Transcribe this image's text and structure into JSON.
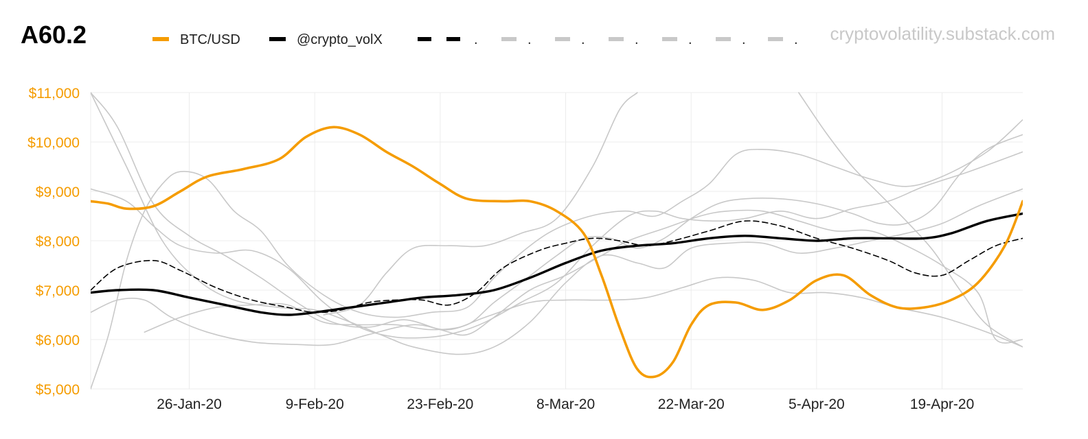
{
  "header": {
    "title": "A60.2",
    "watermark": "cryptovolatility.substack.com"
  },
  "colors": {
    "btc": "#f59c00",
    "vol": "#000000",
    "grey": "#c8c8c8",
    "grid": "#ececec"
  },
  "chart_data": {
    "type": "line",
    "title": "A60.2",
    "xlabel": "",
    "ylabel": "",
    "ylim": [
      5000,
      11000
    ],
    "xlim": [
      0,
      104
    ],
    "legend": "top",
    "x_ticks": [
      {
        "x": 11,
        "label": "26-Jan-20"
      },
      {
        "x": 25,
        "label": "9-Feb-20"
      },
      {
        "x": 39,
        "label": "23-Feb-20"
      },
      {
        "x": 53,
        "label": "8-Mar-20"
      },
      {
        "x": 67,
        "label": "22-Mar-20"
      },
      {
        "x": 81,
        "label": "5-Apr-20"
      },
      {
        "x": 95,
        "label": "19-Apr-20"
      }
    ],
    "y_ticks": [
      {
        "v": 11000,
        "label": "$11,000"
      },
      {
        "v": 10000,
        "label": "$10,000"
      },
      {
        "v": 9000,
        "label": "$9,000"
      },
      {
        "v": 8000,
        "label": "$8,000"
      },
      {
        "v": 7000,
        "label": "$7,000"
      },
      {
        "v": 6000,
        "label": "$6,000"
      },
      {
        "v": 5000,
        "label": "$5,000"
      }
    ],
    "legend_entries": [
      {
        "name": "BTC/USD",
        "style": "solid-orange"
      },
      {
        "name": "@crypto_volX",
        "style": "solid-black"
      },
      {
        "name": ".",
        "style": "dashed-black"
      },
      {
        "name": ".",
        "style": "dashed-grey"
      },
      {
        "name": ".",
        "style": "dashed-grey"
      },
      {
        "name": ".",
        "style": "dashed-grey"
      },
      {
        "name": ".",
        "style": "dashed-grey"
      },
      {
        "name": ".",
        "style": "dashed-grey"
      }
    ],
    "series": [
      {
        "name": "grey-1",
        "style": "grey",
        "points": [
          [
            0,
            11000
          ],
          [
            4,
            9500
          ],
          [
            8,
            8000
          ],
          [
            12,
            7200
          ],
          [
            16,
            6800
          ],
          [
            21,
            6650
          ],
          [
            25,
            6600
          ],
          [
            29,
            6350
          ],
          [
            33,
            6050
          ],
          [
            36,
            5850
          ],
          [
            41,
            5700
          ],
          [
            45,
            5850
          ],
          [
            49,
            6350
          ],
          [
            53,
            7150
          ],
          [
            57,
            7700
          ],
          [
            61,
            7550
          ],
          [
            64,
            7450
          ],
          [
            67,
            7850
          ],
          [
            71,
            7950
          ],
          [
            75,
            7950
          ],
          [
            79,
            7750
          ],
          [
            83,
            7850
          ],
          [
            87,
            8000
          ],
          [
            91,
            8150
          ],
          [
            95,
            8350
          ],
          [
            99,
            8700
          ],
          [
            104,
            9050
          ]
        ]
      },
      {
        "name": "grey-2",
        "style": "grey",
        "points": [
          [
            0,
            9050
          ],
          [
            4,
            8800
          ],
          [
            7,
            8300
          ],
          [
            10,
            7900
          ],
          [
            14,
            7750
          ],
          [
            18,
            7800
          ],
          [
            22,
            7450
          ],
          [
            26,
            6750
          ],
          [
            30,
            6250
          ],
          [
            34,
            6050
          ],
          [
            38,
            6050
          ],
          [
            41,
            6150
          ],
          [
            44,
            6350
          ],
          [
            48,
            6750
          ],
          [
            52,
            7150
          ],
          [
            56,
            7900
          ],
          [
            60,
            8500
          ],
          [
            63,
            8600
          ],
          [
            66,
            8450
          ],
          [
            70,
            8400
          ],
          [
            73,
            8450
          ],
          [
            77,
            8600
          ],
          [
            81,
            8450
          ],
          [
            85,
            8650
          ],
          [
            89,
            8800
          ],
          [
            93,
            9100
          ],
          [
            98,
            9400
          ],
          [
            104,
            9800
          ]
        ]
      },
      {
        "name": "grey-3",
        "style": "grey",
        "points": [
          [
            0,
            11000
          ],
          [
            3,
            10300
          ],
          [
            7,
            8750
          ],
          [
            11,
            8100
          ],
          [
            15,
            7700
          ],
          [
            19,
            7250
          ],
          [
            23,
            6750
          ],
          [
            27,
            6350
          ],
          [
            31,
            6250
          ],
          [
            35,
            6400
          ],
          [
            39,
            6200
          ],
          [
            42,
            6100
          ],
          [
            45,
            6450
          ],
          [
            49,
            7000
          ],
          [
            53,
            7300
          ],
          [
            57,
            7700
          ],
          [
            60,
            8000
          ],
          [
            64,
            8250
          ],
          [
            68,
            8500
          ],
          [
            71,
            8600
          ],
          [
            75,
            8600
          ],
          [
            79,
            8400
          ],
          [
            83,
            8200
          ],
          [
            87,
            8200
          ],
          [
            91,
            7900
          ],
          [
            95,
            7500
          ],
          [
            99,
            6950
          ],
          [
            101,
            6000
          ],
          [
            104,
            6000
          ]
        ]
      },
      {
        "name": "grey-4",
        "style": "grey",
        "points": [
          [
            0,
            6550
          ],
          [
            3,
            6800
          ],
          [
            6,
            6800
          ],
          [
            9,
            6450
          ],
          [
            13,
            6150
          ],
          [
            18,
            5950
          ],
          [
            23,
            5900
          ],
          [
            27,
            5900
          ],
          [
            31,
            6100
          ],
          [
            36,
            6300
          ],
          [
            40,
            6200
          ],
          [
            44,
            6450
          ],
          [
            49,
            6750
          ],
          [
            53,
            6800
          ],
          [
            58,
            6800
          ],
          [
            62,
            6850
          ],
          [
            66,
            7050
          ],
          [
            70,
            7250
          ],
          [
            74,
            7200
          ],
          [
            78,
            6950
          ],
          [
            82,
            6950
          ],
          [
            86,
            6850
          ],
          [
            90,
            6650
          ],
          [
            95,
            6450
          ],
          [
            100,
            6150
          ],
          [
            104,
            5850
          ]
        ]
      },
      {
        "name": "grey-5",
        "style": "grey",
        "points": [
          [
            6,
            6150
          ],
          [
            10,
            6450
          ],
          [
            14,
            6650
          ],
          [
            18,
            6700
          ],
          [
            22,
            6700
          ],
          [
            26,
            6350
          ],
          [
            30,
            6300
          ],
          [
            34,
            6300
          ],
          [
            38,
            6200
          ],
          [
            42,
            6300
          ],
          [
            45,
            6750
          ],
          [
            48,
            7150
          ],
          [
            52,
            7700
          ],
          [
            55,
            8050
          ],
          [
            58,
            8050
          ],
          [
            61,
            7850
          ],
          [
            64,
            8050
          ],
          [
            67,
            8450
          ],
          [
            70,
            8750
          ],
          [
            73,
            8850
          ],
          [
            77,
            8850
          ],
          [
            81,
            8750
          ],
          [
            85,
            8550
          ],
          [
            88,
            8350
          ],
          [
            91,
            8350
          ],
          [
            94,
            8650
          ],
          [
            97,
            9350
          ],
          [
            100,
            9850
          ],
          [
            104,
            10150
          ]
        ]
      },
      {
        "name": "grey-6",
        "style": "grey",
        "points": [
          [
            0,
            5000
          ],
          [
            2,
            6100
          ],
          [
            4,
            7600
          ],
          [
            6,
            8600
          ],
          [
            8,
            9150
          ],
          [
            10,
            9400
          ],
          [
            13,
            9250
          ],
          [
            16,
            8600
          ],
          [
            19,
            8200
          ],
          [
            22,
            7500
          ],
          [
            26,
            6900
          ],
          [
            30,
            6550
          ],
          [
            34,
            6450
          ],
          [
            38,
            6550
          ],
          [
            42,
            6650
          ],
          [
            45,
            7250
          ],
          [
            48,
            7750
          ],
          [
            51,
            8150
          ],
          [
            54,
            8400
          ],
          [
            57,
            8550
          ],
          [
            60,
            8600
          ],
          [
            63,
            8500
          ],
          [
            66,
            8800
          ],
          [
            69,
            9150
          ],
          [
            72,
            9750
          ],
          [
            75,
            9850
          ],
          [
            79,
            9750
          ],
          [
            83,
            9500
          ],
          [
            87,
            9250
          ],
          [
            91,
            9100
          ],
          [
            95,
            9300
          ],
          [
            100,
            9800
          ],
          [
            104,
            10450
          ]
        ]
      },
      {
        "name": "grey-7",
        "style": "grey",
        "points": [
          [
            26,
            6500
          ],
          [
            30,
            6700
          ],
          [
            33,
            7350
          ],
          [
            36,
            7850
          ],
          [
            40,
            7900
          ],
          [
            44,
            7900
          ],
          [
            48,
            8150
          ],
          [
            52,
            8450
          ],
          [
            56,
            9500
          ],
          [
            59,
            10650
          ],
          [
            61,
            11000
          ]
        ]
      },
      {
        "name": "grey-8",
        "style": "grey",
        "points": [
          [
            79,
            11000
          ],
          [
            82,
            10200
          ],
          [
            85,
            9500
          ],
          [
            88,
            8950
          ],
          [
            91,
            8400
          ],
          [
            94,
            7800
          ],
          [
            97,
            7000
          ],
          [
            100,
            6300
          ],
          [
            104,
            5850
          ]
        ]
      },
      {
        "name": "dashed-black",
        "style": "dashed",
        "points": [
          [
            0,
            7000
          ],
          [
            3,
            7450
          ],
          [
            7,
            7600
          ],
          [
            10,
            7400
          ],
          [
            14,
            7050
          ],
          [
            18,
            6800
          ],
          [
            22,
            6650
          ],
          [
            25,
            6550
          ],
          [
            28,
            6600
          ],
          [
            31,
            6750
          ],
          [
            34,
            6800
          ],
          [
            37,
            6800
          ],
          [
            40,
            6700
          ],
          [
            43,
            6950
          ],
          [
            46,
            7450
          ],
          [
            50,
            7800
          ],
          [
            53,
            7950
          ],
          [
            56,
            8050
          ],
          [
            59,
            8000
          ],
          [
            62,
            7900
          ],
          [
            65,
            8000
          ],
          [
            69,
            8200
          ],
          [
            73,
            8400
          ],
          [
            77,
            8300
          ],
          [
            81,
            8050
          ],
          [
            85,
            7850
          ],
          [
            89,
            7600
          ],
          [
            92,
            7350
          ],
          [
            95,
            7300
          ],
          [
            98,
            7600
          ],
          [
            101,
            7900
          ],
          [
            104,
            8050
          ]
        ]
      },
      {
        "name": "@crypto_volX",
        "style": "vol",
        "points": [
          [
            0,
            6950
          ],
          [
            3,
            7000
          ],
          [
            7,
            7000
          ],
          [
            11,
            6850
          ],
          [
            15,
            6700
          ],
          [
            19,
            6550
          ],
          [
            22,
            6500
          ],
          [
            25,
            6550
          ],
          [
            29,
            6650
          ],
          [
            33,
            6750
          ],
          [
            37,
            6850
          ],
          [
            41,
            6900
          ],
          [
            45,
            7000
          ],
          [
            49,
            7250
          ],
          [
            53,
            7550
          ],
          [
            57,
            7800
          ],
          [
            61,
            7900
          ],
          [
            65,
            7950
          ],
          [
            69,
            8050
          ],
          [
            73,
            8100
          ],
          [
            77,
            8050
          ],
          [
            81,
            8000
          ],
          [
            85,
            8050
          ],
          [
            89,
            8050
          ],
          [
            93,
            8050
          ],
          [
            96,
            8150
          ],
          [
            100,
            8400
          ],
          [
            104,
            8550
          ]
        ]
      },
      {
        "name": "BTC/USD",
        "style": "btc",
        "points": [
          [
            0,
            8800
          ],
          [
            2,
            8750
          ],
          [
            4,
            8650
          ],
          [
            7,
            8700
          ],
          [
            10,
            9000
          ],
          [
            13,
            9300
          ],
          [
            17,
            9450
          ],
          [
            21,
            9650
          ],
          [
            24,
            10100
          ],
          [
            27,
            10300
          ],
          [
            30,
            10150
          ],
          [
            33,
            9800
          ],
          [
            36,
            9500
          ],
          [
            39,
            9150
          ],
          [
            42,
            8850
          ],
          [
            46,
            8800
          ],
          [
            49,
            8800
          ],
          [
            52,
            8600
          ],
          [
            55,
            8150
          ],
          [
            57,
            7300
          ],
          [
            59,
            6250
          ],
          [
            61,
            5400
          ],
          [
            63,
            5250
          ],
          [
            65,
            5550
          ],
          [
            67,
            6300
          ],
          [
            69,
            6700
          ],
          [
            72,
            6750
          ],
          [
            75,
            6600
          ],
          [
            78,
            6800
          ],
          [
            81,
            7200
          ],
          [
            84,
            7300
          ],
          [
            87,
            6900
          ],
          [
            90,
            6650
          ],
          [
            93,
            6650
          ],
          [
            96,
            6800
          ],
          [
            99,
            7150
          ],
          [
            102,
            7900
          ],
          [
            104,
            8800
          ]
        ]
      }
    ]
  }
}
